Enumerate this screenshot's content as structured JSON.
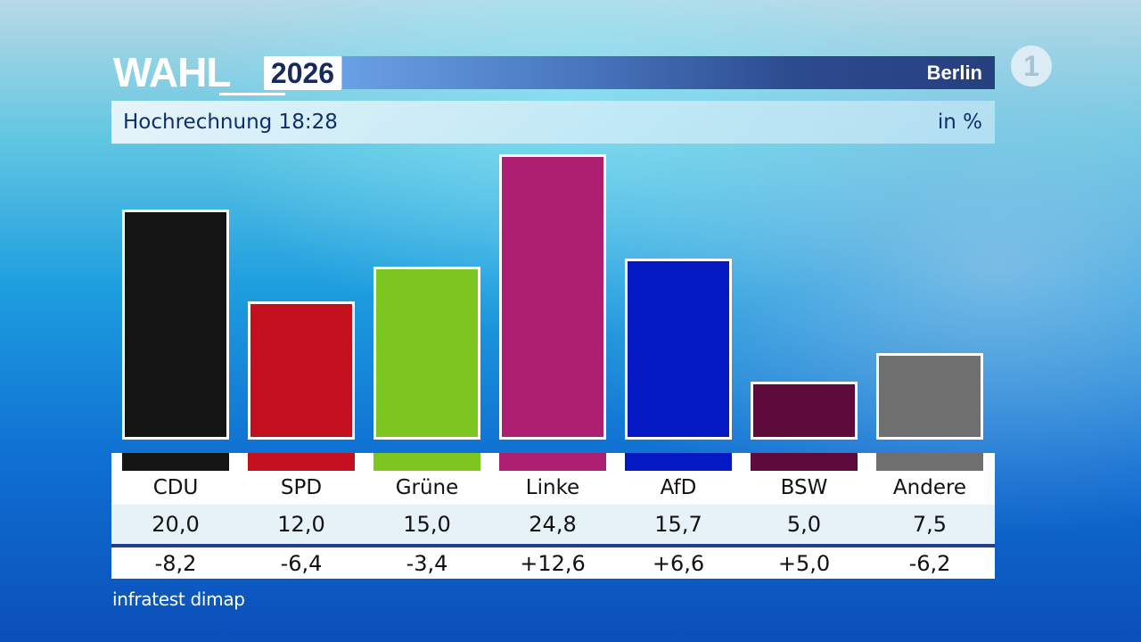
{
  "header": {
    "logo_word": "WAHL",
    "logo_year": "2026",
    "region": "Berlin",
    "subtitle": "Hochrechnung 18:28",
    "unit": "in %",
    "broadcaster_logo": "1"
  },
  "chart_data": {
    "type": "bar",
    "categories": [
      "CDU",
      "SPD",
      "Grüne",
      "Linke",
      "AfD",
      "BSW",
      "Andere"
    ],
    "series": [
      {
        "values": [
          20.0,
          12.0,
          15.0,
          24.8,
          15.7,
          5.0,
          7.5
        ],
        "labels": [
          "20,0",
          "12,0",
          "15,0",
          "24,8",
          "15,7",
          "5,0",
          "7,5"
        ]
      }
    ],
    "changes": [
      -8.2,
      -6.4,
      -3.4,
      12.6,
      6.6,
      5.0,
      -6.2
    ],
    "change_labels": [
      "-8,2",
      "-6,4",
      "-3,4",
      "+12,6",
      "+6,6",
      "+5,0",
      "-6,2"
    ],
    "colors": [
      "#141414",
      "#c30f1e",
      "#7dc61f",
      "#ad1f70",
      "#0419c2",
      "#5c0b3b",
      "#6f6f6f"
    ],
    "ylim": [
      0,
      25
    ],
    "grid": false,
    "legend": "none"
  },
  "footer": {
    "source": "infratest dimap"
  }
}
